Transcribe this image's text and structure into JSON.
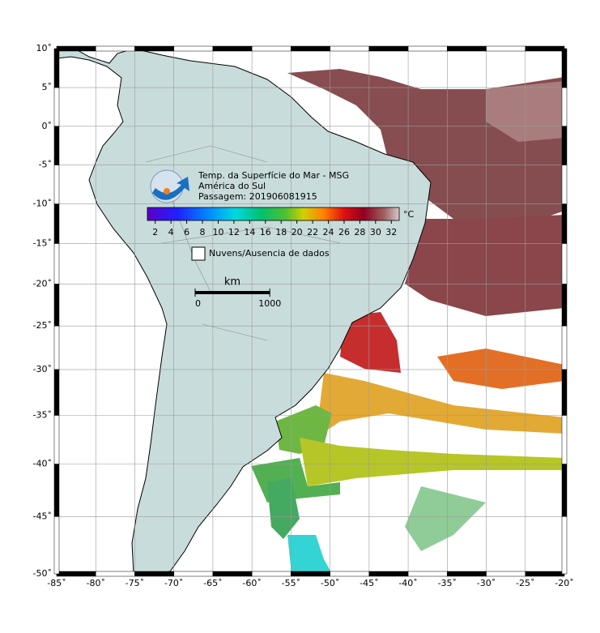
{
  "map": {
    "title": "Temp. da Superfície do Mar - MSG",
    "subtitle": "América do Sul",
    "pass": "Passagem: 201906081915",
    "xlim": [
      -85,
      -20
    ],
    "ylim": [
      -50,
      10
    ],
    "xticks": [
      {
        "value": -85,
        "label": "-85˚"
      },
      {
        "value": -80,
        "label": "-80˚"
      },
      {
        "value": -75,
        "label": "-75˚"
      },
      {
        "value": -70,
        "label": "-70˚"
      },
      {
        "value": -65,
        "label": "-65˚"
      },
      {
        "value": -60,
        "label": "-60˚"
      },
      {
        "value": -55,
        "label": "-55˚"
      },
      {
        "value": -50,
        "label": "-50˚"
      },
      {
        "value": -45,
        "label": "-45˚"
      },
      {
        "value": -40,
        "label": "-40˚"
      },
      {
        "value": -35,
        "label": "-35˚"
      },
      {
        "value": -30,
        "label": "-30˚"
      },
      {
        "value": -25,
        "label": "-25˚"
      },
      {
        "value": -20,
        "label": "-20˚"
      }
    ],
    "yticks": [
      {
        "value": 10,
        "label": "10˚"
      },
      {
        "value": 5,
        "label": "5˚"
      },
      {
        "value": 0,
        "label": "0˚"
      },
      {
        "value": -5,
        "label": "-5˚"
      },
      {
        "value": -10,
        "label": "-10˚"
      },
      {
        "value": -15,
        "label": "-15˚"
      },
      {
        "value": -20,
        "label": "-20˚"
      },
      {
        "value": -25,
        "label": "-25˚"
      },
      {
        "value": -30,
        "label": "-30˚"
      },
      {
        "value": -35,
        "label": "-35˚"
      },
      {
        "value": -40,
        "label": "-40˚"
      },
      {
        "value": -45,
        "label": "-45˚"
      },
      {
        "value": -50,
        "label": "-50˚"
      }
    ],
    "colorbar": {
      "unit": "°C",
      "lim": [
        1,
        33
      ],
      "ticks": [
        2,
        4,
        6,
        8,
        10,
        12,
        14,
        16,
        18,
        20,
        22,
        24,
        26,
        28,
        30,
        32
      ]
    },
    "legend": {
      "nodata": "Nuvens/Ausencia de dados"
    },
    "scale": {
      "unit": "km",
      "ticks": [
        0,
        1000
      ]
    }
  }
}
